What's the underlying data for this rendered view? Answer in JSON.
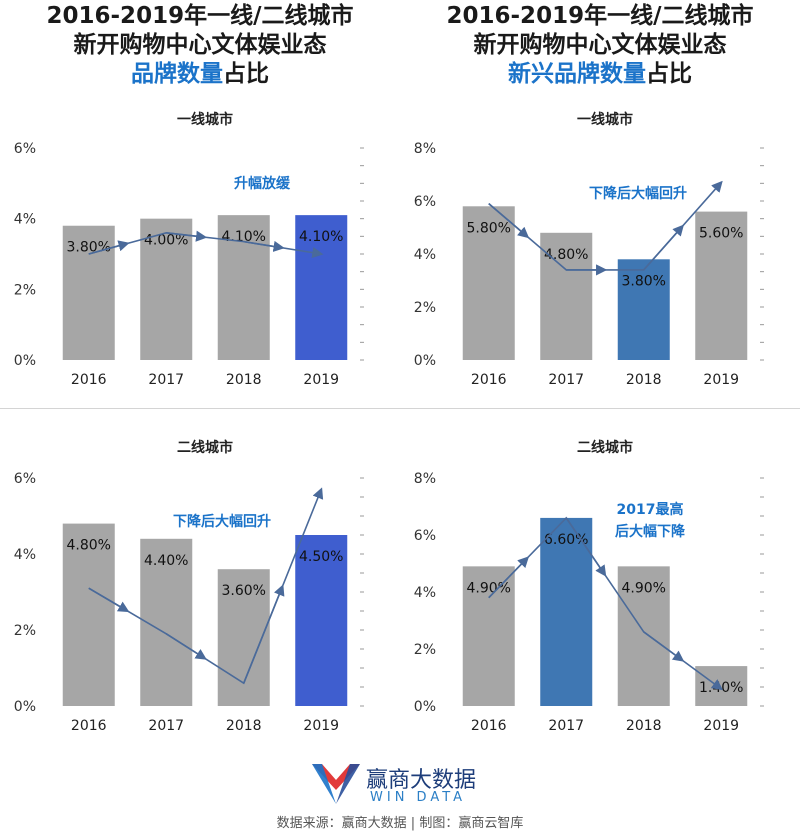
{
  "header": {
    "left_title_line1": "2016-2019年一线/二线城市",
    "left_title_line2": "新开购物中心文体娱业态",
    "left_title_hl": "品牌数量",
    "left_title_suffix": "占比",
    "right_title_line1": "2016-2019年一线/二线城市",
    "right_title_line2": "新开购物中心文体娱业态",
    "right_title_hl": "新兴品牌数量",
    "right_title_suffix": "占比"
  },
  "footer": {
    "logo_cn": "赢商大数据",
    "logo_en": "WIN DATA",
    "source": "数据来源：赢商大数据 | 制图：赢商云智库"
  },
  "colors": {
    "bar_gray": "#a6a6a6",
    "bar_blue": "#3f5ecf",
    "bar_steel": "#3f77b3",
    "annotation": "#1b73c9",
    "arrow": "#4a6a9a"
  },
  "chart_data": [
    {
      "type": "bar",
      "title": "一线城市",
      "categories": [
        "2016",
        "2017",
        "2018",
        "2019"
      ],
      "values": [
        3.8,
        4.0,
        4.1,
        4.1
      ],
      "data_labels": [
        "3.80%",
        "4.00%",
        "4.10%",
        "4.10%"
      ],
      "highlight_index": 3,
      "highlight_color": "#3f5ecf",
      "yticks": [
        "0%",
        "2%",
        "4%",
        "6%"
      ],
      "ylim": [
        0,
        6
      ],
      "annotation": "升幅放缓",
      "trend_points": [
        3.0,
        3.6,
        3.35,
        3.0
      ]
    },
    {
      "type": "bar",
      "title": "一线城市",
      "categories": [
        "2016",
        "2017",
        "2018",
        "2019"
      ],
      "values": [
        5.8,
        4.8,
        3.8,
        5.6
      ],
      "data_labels": [
        "5.80%",
        "4.80%",
        "3.80%",
        "5.60%"
      ],
      "highlight_index": 2,
      "highlight_color": "#3f77b3",
      "yticks": [
        "0%",
        "2%",
        "4%",
        "6%",
        "8%"
      ],
      "ylim": [
        0,
        8
      ],
      "annotation": "下降后大幅回升",
      "trend_points": [
        5.9,
        3.4,
        3.4,
        6.7
      ]
    },
    {
      "type": "bar",
      "title": "二线城市",
      "categories": [
        "2016",
        "2017",
        "2018",
        "2019"
      ],
      "values": [
        4.8,
        4.4,
        3.6,
        4.5
      ],
      "data_labels": [
        "4.80%",
        "4.40%",
        "3.60%",
        "4.50%"
      ],
      "highlight_index": 3,
      "highlight_color": "#3f5ecf",
      "yticks": [
        "0%",
        "2%",
        "4%",
        "6%"
      ],
      "ylim": [
        0,
        6
      ],
      "annotation": "下降后大幅回升",
      "trend_points": [
        3.1,
        1.9,
        0.6,
        5.7
      ]
    },
    {
      "type": "bar",
      "title": "二线城市",
      "categories": [
        "2016",
        "2017",
        "2018",
        "2019"
      ],
      "values": [
        4.9,
        6.6,
        4.9,
        1.4
      ],
      "data_labels": [
        "4.90%",
        "6.60%",
        "4.90%",
        "1.40%"
      ],
      "highlight_index": 1,
      "highlight_color": "#3f77b3",
      "yticks": [
        "0%",
        "2%",
        "4%",
        "6%",
        "8%"
      ],
      "ylim": [
        0,
        8
      ],
      "annotation_lines": [
        "2017最高",
        "后大幅下降"
      ],
      "trend_points": [
        3.8,
        6.6,
        2.6,
        0.6
      ]
    }
  ]
}
